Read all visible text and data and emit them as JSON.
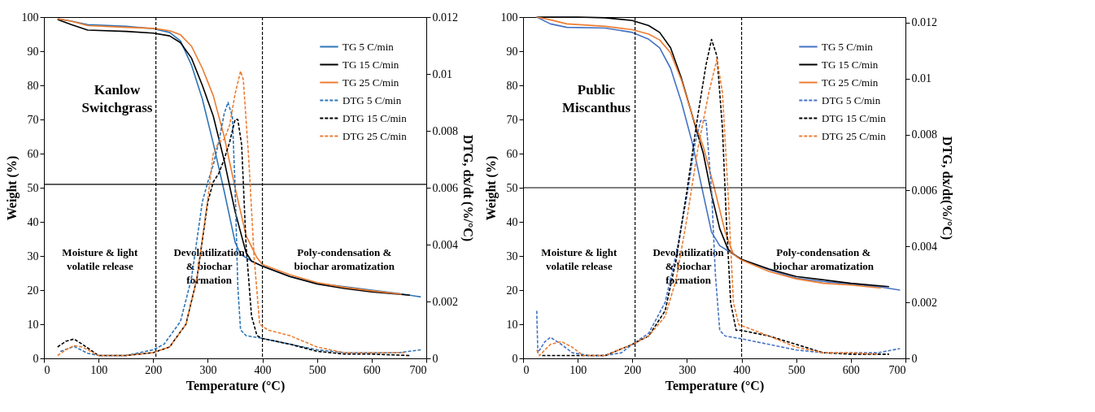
{
  "chart_data": [
    {
      "type": "line",
      "title": "Kanlow\nSwitchgrass",
      "xlabel": "Temperature (°C)",
      "ylabel": "Weight (%)",
      "y2label": "DTG, dx/dt (%/°C)",
      "xlim": [
        0,
        700
      ],
      "xticks": [
        0,
        100,
        200,
        300,
        400,
        500,
        600,
        700
      ],
      "ylim": [
        0,
        100
      ],
      "yticks": [
        0,
        10,
        20,
        30,
        40,
        50,
        60,
        70,
        80,
        90,
        100
      ],
      "y2lim": [
        0,
        0.012
      ],
      "y2ticks": [
        0,
        0.002,
        0.004,
        0.006,
        0.008,
        0.01,
        0.012
      ],
      "legend": "top right",
      "ref_lines": [
        {
          "axis": "x",
          "value": 205,
          "line_style": "dashed",
          "color": "#000000"
        },
        {
          "axis": "x",
          "value": 400,
          "line_style": "dashed",
          "color": "#000000"
        },
        {
          "axis": "y",
          "value": 51,
          "line_style": "solid",
          "color": "#000000"
        }
      ],
      "annotations": [
        "Moisture & light\nvolatile release",
        "Devolatilization\n& biochar\nformation",
        "Poly-condensation &\nbiochar aromatization"
      ],
      "series": [
        {
          "name": "TG 5 C/min",
          "color": "#2e75b6",
          "line_style": "solid",
          "x": [
            25,
            50,
            80,
            150,
            200,
            230,
            250,
            270,
            290,
            310,
            330,
            350,
            360,
            380,
            400,
            450,
            500,
            550,
            600,
            650,
            690
          ],
          "values": [
            99.5,
            98.8,
            97.8,
            97.3,
            96.6,
            95.5,
            93,
            86,
            76,
            63,
            49,
            34,
            30.5,
            28.5,
            27,
            24,
            22,
            21,
            20,
            19,
            18
          ]
        },
        {
          "name": "TG 15 C/min",
          "color": "#000000",
          "line_style": "solid",
          "x": [
            25,
            50,
            80,
            150,
            200,
            230,
            250,
            270,
            290,
            310,
            330,
            350,
            370,
            380,
            400,
            450,
            500,
            550,
            600,
            670
          ],
          "values": [
            99.3,
            97.8,
            96.2,
            95.8,
            95.3,
            94.5,
            92.5,
            88,
            80,
            71,
            58,
            43,
            31,
            28.5,
            27,
            24,
            21.8,
            20.5,
            19.5,
            18.5
          ]
        },
        {
          "name": "TG 25 C/min",
          "color": "#ed7d31",
          "line_style": "solid",
          "x": [
            25,
            50,
            80,
            150,
            200,
            230,
            250,
            270,
            290,
            310,
            330,
            350,
            370,
            390,
            400,
            450,
            500,
            550,
            600,
            655
          ],
          "values": [
            99.5,
            98.8,
            97.5,
            97,
            96.7,
            96,
            94.8,
            91.5,
            85,
            77,
            65,
            50,
            36,
            29.5,
            27.5,
            24.5,
            22.2,
            20.8,
            19.8,
            18.8
          ]
        },
        {
          "name": "DTG 5 C/min",
          "color": "#2e75b6",
          "line_style": "dashed",
          "axis": "y2",
          "x": [
            30,
            55,
            80,
            100,
            150,
            200,
            220,
            250,
            270,
            290,
            300,
            310,
            320,
            330,
            337,
            345,
            350,
            355,
            360,
            370,
            400,
            450,
            500,
            550,
            600,
            650,
            690
          ],
          "values": [
            0.00024,
            0.00042,
            0.00018,
            0.0001,
            0.0001,
            0.0003,
            0.0005,
            0.0013,
            0.0028,
            0.0055,
            0.0062,
            0.0068,
            0.0076,
            0.0086,
            0.009,
            0.0085,
            0.006,
            0.0025,
            0.001,
            0.0008,
            0.0007,
            0.0005,
            0.0003,
            0.0002,
            0.0002,
            0.0002,
            0.0003
          ]
        },
        {
          "name": "DTG 15 C/min",
          "color": "#000000",
          "line_style": "dashed",
          "axis": "y2",
          "x": [
            25,
            40,
            55,
            70,
            100,
            150,
            200,
            230,
            260,
            280,
            300,
            310,
            320,
            330,
            340,
            350,
            355,
            362,
            370,
            380,
            390,
            400,
            450,
            500,
            550,
            600,
            670
          ],
          "values": [
            0.0004,
            0.0006,
            0.00068,
            0.0005,
            0.0001,
            0.0001,
            0.0002,
            0.0004,
            0.0012,
            0.0028,
            0.0055,
            0.0062,
            0.0065,
            0.007,
            0.0076,
            0.0084,
            0.0084,
            0.0075,
            0.004,
            0.0015,
            0.0008,
            0.0007,
            0.0005,
            0.00025,
            0.00015,
            0.00015,
            0.0001
          ]
        },
        {
          "name": "DTG 25 C/min",
          "color": "#ed7d31",
          "line_style": "dashed",
          "axis": "y2",
          "x": [
            25,
            40,
            55,
            70,
            100,
            150,
            200,
            230,
            260,
            280,
            300,
            310,
            320,
            330,
            340,
            350,
            360,
            365,
            375,
            385,
            395,
            410,
            450,
            500,
            550,
            600,
            660
          ],
          "values": [
            0.0001,
            0.0003,
            0.00045,
            0.0004,
            0.0001,
            0.0001,
            0.0002,
            0.0004,
            0.0012,
            0.0028,
            0.0056,
            0.0072,
            0.0076,
            0.0077,
            0.0082,
            0.0093,
            0.0101,
            0.0098,
            0.007,
            0.0035,
            0.0012,
            0.001,
            0.0008,
            0.0004,
            0.0002,
            0.0002,
            0.0002
          ]
        }
      ]
    },
    {
      "type": "line",
      "title": "Public\nMiscanthus",
      "xlabel": "Temperature (°C)",
      "ylabel": "Weight (%)",
      "y2label": "DTG, dx/dt(%/°C)",
      "xlim": [
        0,
        700
      ],
      "xticks": [
        0,
        100,
        200,
        300,
        400,
        500,
        600,
        700
      ],
      "ylim": [
        0,
        100
      ],
      "yticks": [
        0,
        10,
        20,
        30,
        40,
        50,
        60,
        70,
        80,
        90,
        100
      ],
      "y2lim": [
        0,
        0.0122
      ],
      "y2ticks": [
        0,
        0.002,
        0.004,
        0.006,
        0.008,
        0.01,
        0.012
      ],
      "legend": "top right",
      "ref_lines": [
        {
          "axis": "x",
          "value": 205,
          "line_style": "dashed",
          "color": "#000000"
        },
        {
          "axis": "x",
          "value": 400,
          "line_style": "dashed",
          "color": "#000000"
        },
        {
          "axis": "y",
          "value": 50,
          "line_style": "solid",
          "color": "#000000"
        }
      ],
      "annotations": [
        "Moisture & light\nvolatile release",
        "Devolatilization\n& biochar\nformation",
        "Poly-condensation &\nbiochar aromatization"
      ],
      "series": [
        {
          "name": "TG 5 C/min",
          "color": "#4472c4",
          "line_style": "solid",
          "x": [
            25,
            50,
            80,
            150,
            200,
            230,
            250,
            270,
            290,
            310,
            330,
            345,
            360,
            380,
            400,
            450,
            500,
            550,
            600,
            650,
            690
          ],
          "values": [
            100,
            98,
            97,
            96.8,
            95.5,
            93.5,
            91,
            85,
            75,
            63,
            48,
            37,
            33,
            31,
            29,
            26,
            23.5,
            22.5,
            21.8,
            21,
            20
          ]
        },
        {
          "name": "TG 15 C/min",
          "color": "#000000",
          "line_style": "solid",
          "x": [
            25,
            100,
            150,
            200,
            230,
            250,
            270,
            290,
            310,
            330,
            345,
            360,
            375,
            390,
            400,
            450,
            500,
            550,
            600,
            670
          ],
          "values": [
            100,
            100,
            99.8,
            99,
            97.5,
            95.5,
            91,
            82,
            71,
            60,
            48,
            38,
            32,
            30,
            29,
            26.2,
            24,
            23,
            22,
            21
          ]
        },
        {
          "name": "TG 25 C/min",
          "color": "#ed7d31",
          "line_style": "solid",
          "x": [
            25,
            50,
            80,
            150,
            200,
            230,
            250,
            270,
            290,
            310,
            330,
            350,
            370,
            385,
            400,
            450,
            500,
            550,
            600,
            655
          ],
          "values": [
            100,
            99.2,
            98,
            97.3,
            96.3,
            95,
            93.3,
            89.5,
            81.5,
            71,
            62,
            50,
            37,
            30.5,
            28.8,
            25.5,
            23.3,
            22,
            21.5,
            20.6
          ]
        },
        {
          "name": "DTG 5 C/min",
          "color": "#4472c4",
          "line_style": "dashed",
          "axis": "y2",
          "x": [
            25,
            27,
            40,
            50,
            70,
            90,
            120,
            150,
            180,
            200,
            230,
            260,
            280,
            300,
            315,
            325,
            335,
            345,
            352,
            360,
            370,
            400,
            450,
            500,
            550,
            600,
            650,
            690
          ],
          "values": [
            0.0017,
            0.0002,
            0.0006,
            0.00075,
            0.0005,
            0.0002,
            0.0001,
            0.0001,
            0.0002,
            0.0005,
            0.0009,
            0.002,
            0.0037,
            0.0058,
            0.0077,
            0.0085,
            0.0085,
            0.006,
            0.003,
            0.001,
            0.0008,
            0.0007,
            0.0005,
            0.0003,
            0.0002,
            0.0002,
            0.0002,
            0.00035
          ]
        },
        {
          "name": "DTG 15 C/min",
          "color": "#000000",
          "line_style": "dashed",
          "axis": "y2",
          "x": [
            35,
            60,
            100,
            150,
            200,
            230,
            260,
            280,
            300,
            320,
            335,
            345,
            355,
            365,
            372,
            380,
            390,
            400,
            450,
            500,
            550,
            600,
            670
          ],
          "values": [
            0.0001,
            0.0001,
            0.0001,
            0.0001,
            0.0005,
            0.0008,
            0.0017,
            0.0035,
            0.006,
            0.0087,
            0.0105,
            0.0114,
            0.0108,
            0.0082,
            0.005,
            0.002,
            0.001,
            0.001,
            0.0008,
            0.0005,
            0.0002,
            0.00015,
            0.00015
          ]
        },
        {
          "name": "DTG 25 C/min",
          "color": "#ed7d31",
          "line_style": "dashed",
          "axis": "y2",
          "x": [
            25,
            30,
            50,
            70,
            90,
            110,
            150,
            200,
            230,
            260,
            280,
            300,
            320,
            340,
            355,
            365,
            375,
            385,
            395,
            410,
            450,
            500,
            550,
            600,
            650
          ],
          "values": [
            0.0003,
            0.0001,
            0.0005,
            0.0006,
            0.0004,
            0.0001,
            0.0001,
            0.0005,
            0.0008,
            0.0015,
            0.0028,
            0.005,
            0.0075,
            0.0095,
            0.0107,
            0.0095,
            0.006,
            0.002,
            0.0012,
            0.0011,
            0.0008,
            0.0004,
            0.0002,
            0.0002,
            0.00015
          ]
        }
      ]
    }
  ]
}
